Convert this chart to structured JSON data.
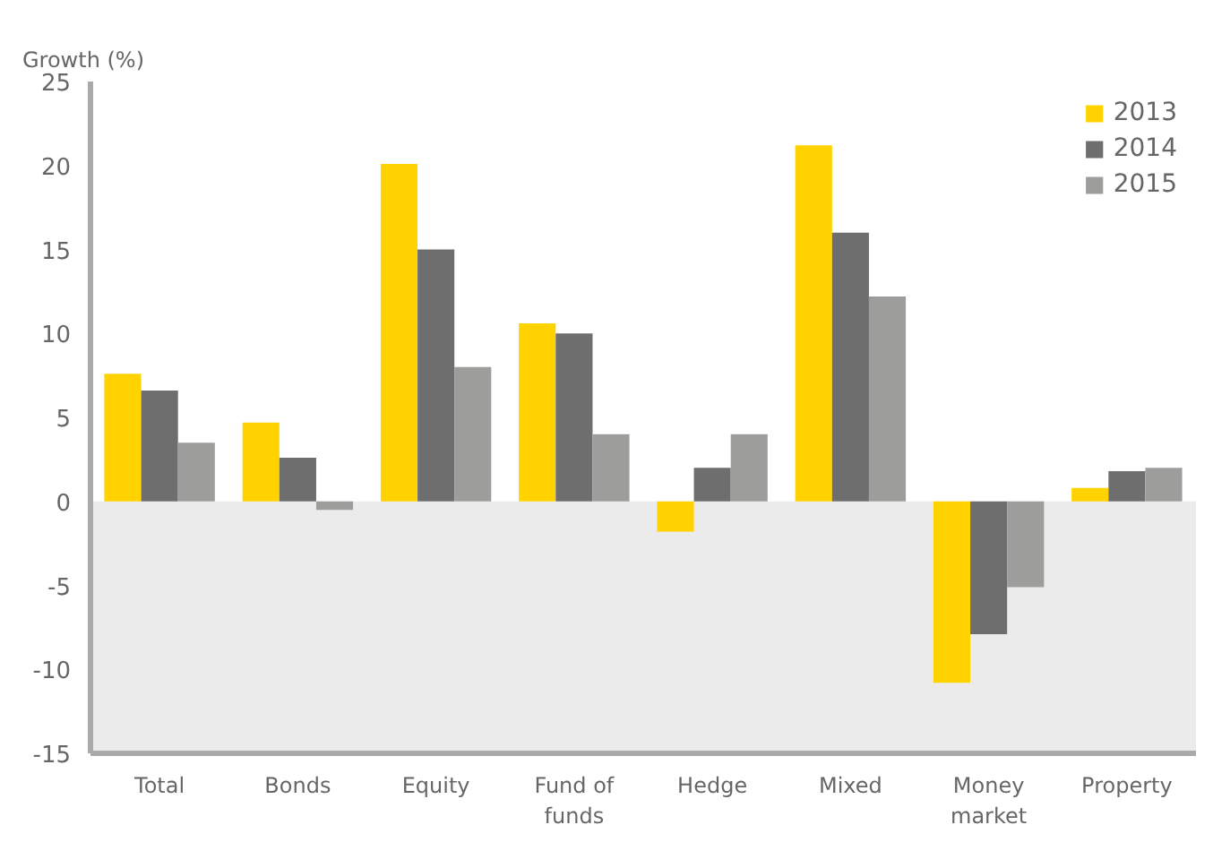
{
  "chart_data": {
    "type": "bar",
    "ylabel": "Growth (%)",
    "categories": [
      "Total",
      "Bonds",
      "Equity",
      "Fund of\nfunds",
      "Hedge",
      "Mixed",
      "Money\nmarket",
      "Property"
    ],
    "series": [
      {
        "name": "2013",
        "color": "#ffd200",
        "values": [
          7.6,
          4.7,
          20.1,
          10.6,
          -1.8,
          21.2,
          -10.8,
          0.8
        ]
      },
      {
        "name": "2014",
        "color": "#6e6e6e",
        "values": [
          6.6,
          2.6,
          15.0,
          10.0,
          2.0,
          16.0,
          -7.9,
          1.8
        ]
      },
      {
        "name": "2015",
        "color": "#9d9d9c",
        "values": [
          3.5,
          -0.5,
          8.0,
          4.0,
          4.0,
          12.2,
          -5.1,
          2.0
        ]
      }
    ],
    "ylim": [
      -15,
      25
    ],
    "yticks": [
      -15,
      -10,
      -5,
      0,
      5,
      10,
      15,
      20,
      25
    ],
    "bands": [
      {
        "axis": "y",
        "from": -15,
        "to": 0,
        "color": "#ebebeb"
      }
    ],
    "grid": false,
    "legend": "top right"
  }
}
